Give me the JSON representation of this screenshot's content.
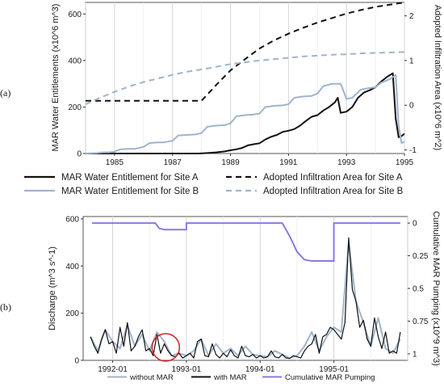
{
  "chart_data": [
    {
      "panel_label": "(a)",
      "type": "line",
      "xlabel": "",
      "ylabel": "MAR Water Entitlements (x10^6 m^3)",
      "ylabel_right": "Adopted Infiltration Area (x10^6 m^2)",
      "xlim": [
        1984,
        1995
      ],
      "ylim": [
        0,
        650
      ],
      "ylim_right": [
        -1.08,
        2.3
      ],
      "x_ticks": [
        "1985",
        "1987",
        "1989",
        "1991",
        "1993",
        "1995"
      ],
      "x_tick_values": [
        1985,
        1987,
        1989,
        1991,
        1993,
        1995
      ],
      "y_ticks": [
        "0",
        "200",
        "400",
        "600"
      ],
      "y_tick_values": [
        0,
        200,
        400,
        600
      ],
      "y_ticks_right": [
        "-1",
        "0",
        "1",
        "2"
      ],
      "y_tick_values_right": [
        -1,
        0,
        1,
        2
      ],
      "grid_x": true,
      "series": [
        {
          "name": "MAR Water Entitlement for Site A",
          "axis": "left",
          "color": "#111111",
          "dash": "solid",
          "x": [
            1984.0,
            1987.9,
            1988.2,
            1988.5,
            1988.8,
            1989.0,
            1989.2,
            1989.4,
            1989.6,
            1989.8,
            1990.0,
            1990.2,
            1990.4,
            1990.6,
            1990.8,
            1991.0,
            1991.2,
            1991.4,
            1991.6,
            1991.8,
            1992.0,
            1992.2,
            1992.4,
            1992.6,
            1992.7,
            1992.8,
            1993.0,
            1993.2,
            1993.4,
            1993.6,
            1993.8,
            1994.0,
            1994.2,
            1994.4,
            1994.6,
            1994.7,
            1994.8,
            1994.9,
            1995.0
          ],
          "y": [
            0,
            0,
            2,
            5,
            9,
            14,
            18,
            24,
            35,
            40,
            44,
            60,
            72,
            80,
            93,
            98,
            105,
            120,
            140,
            158,
            165,
            185,
            200,
            220,
            240,
            175,
            180,
            200,
            240,
            262,
            272,
            285,
            310,
            330,
            345,
            150,
            70,
            75,
            85
          ]
        },
        {
          "name": "MAR Water Entitlement for Site B",
          "axis": "left",
          "color": "#9fb4cc",
          "dash": "solid",
          "x": [
            1984.0,
            1984.4,
            1984.6,
            1984.8,
            1985.0,
            1985.2,
            1985.5,
            1985.7,
            1986.0,
            1986.2,
            1986.5,
            1986.7,
            1987.0,
            1987.2,
            1987.5,
            1987.8,
            1988.0,
            1988.2,
            1988.5,
            1988.8,
            1989.0,
            1989.2,
            1989.5,
            1989.8,
            1990.0,
            1990.2,
            1990.5,
            1990.8,
            1991.0,
            1991.2,
            1991.5,
            1991.8,
            1992.0,
            1992.2,
            1992.5,
            1992.8,
            1993.0,
            1993.2,
            1993.5,
            1993.8,
            1994.0,
            1994.2,
            1994.5,
            1994.7,
            1994.8,
            1994.9,
            1995.0
          ],
          "y": [
            0,
            2,
            5,
            5,
            8,
            18,
            20,
            20,
            28,
            45,
            48,
            48,
            55,
            78,
            80,
            82,
            88,
            115,
            120,
            122,
            130,
            160,
            165,
            168,
            172,
            200,
            205,
            207,
            212,
            240,
            245,
            248,
            258,
            290,
            300,
            300,
            235,
            240,
            275,
            282,
            285,
            305,
            320,
            338,
            120,
            45,
            50
          ]
        },
        {
          "name": "Adopted Infiltration Area for Site A",
          "axis": "right",
          "color": "#111111",
          "dash": "dashed",
          "x": [
            1984.0,
            1988.0,
            1988.5,
            1989.0,
            1989.5,
            1990.0,
            1990.5,
            1991.0,
            1991.5,
            1992.0,
            1992.5,
            1993.0,
            1993.5,
            1994.0,
            1994.5,
            1995.0
          ],
          "y": [
            0.1,
            0.1,
            0.45,
            0.78,
            1.03,
            1.27,
            1.45,
            1.6,
            1.73,
            1.85,
            1.95,
            2.05,
            2.13,
            2.2,
            2.25,
            2.3
          ]
        },
        {
          "name": "Adopted Infiltration Area for Site B",
          "axis": "right",
          "color": "#9fb4cc",
          "dash": "dashed",
          "x": [
            1984.0,
            1984.5,
            1985.0,
            1985.5,
            1986.0,
            1986.5,
            1987.0,
            1987.5,
            1988.0,
            1988.5,
            1989.0,
            1989.5,
            1990.0,
            1990.5,
            1991.0,
            1991.5,
            1992.0,
            1992.5,
            1993.0,
            1993.5,
            1994.0,
            1994.5,
            1995.0
          ],
          "y": [
            0.02,
            0.17,
            0.3,
            0.42,
            0.52,
            0.6,
            0.68,
            0.75,
            0.8,
            0.86,
            0.92,
            0.96,
            1.0,
            1.03,
            1.06,
            1.09,
            1.11,
            1.13,
            1.14,
            1.16,
            1.17,
            1.18,
            1.19
          ]
        }
      ],
      "legend": [
        "MAR Water Entitlement for Site A",
        "Adopted Infiltration Area for Site A",
        "MAR Water Entitlement for Site B",
        "Adopted Infiltration Area for Site B"
      ],
      "legend_placement": "bottom"
    },
    {
      "panel_label": "(b)",
      "type": "line",
      "xlabel": "",
      "ylabel": "Discharge (m^3 s^-1)",
      "ylabel_right": "Cumulative MAR Pumping (x10^9 m^3)",
      "xlim": [
        1991.6,
        1996.0
      ],
      "ylim": [
        0,
        610
      ],
      "ylim_right": [
        1.05,
        -0.05
      ],
      "x_ticks": [
        "1992-01",
        "1993-01",
        "1994-01",
        "1995-01"
      ],
      "x_tick_values": [
        1992.0,
        1993.0,
        1994.0,
        1995.0
      ],
      "y_ticks": [
        "0",
        "200",
        "400",
        "600"
      ],
      "y_tick_values": [
        0,
        200,
        400,
        600
      ],
      "y_ticks_right": [
        "0",
        "0.25",
        "0.5",
        "0.75",
        "1"
      ],
      "y_tick_values_right": [
        0,
        0.25,
        0.5,
        0.75,
        1
      ],
      "grid_x": true,
      "annotation": {
        "type": "circle",
        "x": 1992.72,
        "y": 55,
        "color": "#cc2222"
      },
      "series": [
        {
          "name": "without MAR",
          "axis": "left",
          "color": "#9fb4cc",
          "x": [
            1991.7,
            1991.8,
            1991.9,
            1992.0,
            1992.1,
            1992.2,
            1992.3,
            1992.4,
            1992.5,
            1992.6,
            1992.7,
            1992.8,
            1992.9,
            1993.0,
            1993.1,
            1993.2,
            1993.3,
            1993.4,
            1993.5,
            1993.6,
            1993.7,
            1993.8,
            1993.9,
            1994.0,
            1994.1,
            1994.2,
            1994.3,
            1994.4,
            1994.5,
            1994.6,
            1994.7,
            1994.8,
            1994.9,
            1995.0,
            1995.1,
            1995.2,
            1995.3,
            1995.4,
            1995.5,
            1995.6,
            1995.7,
            1995.8,
            1995.9
          ],
          "y": [
            100,
            40,
            130,
            80,
            50,
            150,
            60,
            110,
            40,
            120,
            80,
            20,
            30,
            20,
            40,
            90,
            20,
            70,
            30,
            50,
            20,
            60,
            25,
            20,
            15,
            40,
            25,
            10,
            20,
            60,
            120,
            40,
            100,
            140,
            120,
            500,
            250,
            160,
            60,
            180,
            50,
            30,
            90
          ]
        },
        {
          "name": "with MAR",
          "axis": "left",
          "color": "#111111",
          "x": [
            1991.7,
            1991.75,
            1991.8,
            1991.85,
            1991.9,
            1991.95,
            1992.0,
            1992.05,
            1992.1,
            1992.15,
            1992.2,
            1992.25,
            1992.3,
            1992.35,
            1992.4,
            1992.45,
            1992.5,
            1992.55,
            1992.6,
            1992.65,
            1992.7,
            1992.75,
            1992.8,
            1992.85,
            1992.9,
            1992.95,
            1993.0,
            1993.05,
            1993.1,
            1993.15,
            1993.2,
            1993.25,
            1993.3,
            1993.35,
            1993.4,
            1993.45,
            1993.5,
            1993.55,
            1993.6,
            1993.65,
            1993.7,
            1993.75,
            1993.8,
            1993.85,
            1993.9,
            1993.95,
            1994.0,
            1994.05,
            1994.1,
            1994.15,
            1994.2,
            1994.25,
            1994.3,
            1994.35,
            1994.4,
            1994.45,
            1994.5,
            1994.55,
            1994.6,
            1994.65,
            1994.7,
            1994.75,
            1994.8,
            1994.85,
            1994.9,
            1994.95,
            1995.0,
            1995.05,
            1995.1,
            1995.15,
            1995.2,
            1995.25,
            1995.3,
            1995.35,
            1995.4,
            1995.45,
            1995.5,
            1995.55,
            1995.6,
            1995.65,
            1995.7,
            1995.75,
            1995.8,
            1995.85,
            1995.9
          ],
          "y": [
            100,
            60,
            30,
            90,
            130,
            70,
            80,
            30,
            140,
            60,
            160,
            40,
            60,
            100,
            130,
            40,
            50,
            20,
            110,
            30,
            70,
            40,
            20,
            15,
            30,
            10,
            20,
            30,
            10,
            80,
            90,
            20,
            15,
            70,
            25,
            10,
            30,
            15,
            45,
            20,
            10,
            60,
            20,
            15,
            25,
            10,
            20,
            10,
            15,
            40,
            15,
            10,
            25,
            10,
            8,
            20,
            15,
            10,
            40,
            60,
            70,
            110,
            30,
            100,
            110,
            140,
            130,
            110,
            90,
            160,
            520,
            300,
            250,
            140,
            170,
            90,
            60,
            180,
            100,
            50,
            120,
            30,
            40,
            30,
            120
          ]
        },
        {
          "name": "Cumulative MAR Pumping",
          "axis": "right",
          "color": "#8a7be0",
          "x": [
            1991.72,
            1992.58,
            1992.63,
            1992.7,
            1993.0,
            1993.0,
            1994.3,
            1994.4,
            1994.5,
            1994.6,
            1994.7,
            1995.0,
            1995.0,
            1995.9
          ],
          "y": [
            0,
            0,
            0.04,
            0.05,
            0.05,
            0,
            0,
            0.1,
            0.22,
            0.28,
            0.29,
            0.29,
            0,
            0
          ]
        }
      ],
      "legend": [
        "without MAR",
        "with MAR",
        "Cumulative MAR Pumping"
      ],
      "legend_placement": "bottom"
    }
  ]
}
